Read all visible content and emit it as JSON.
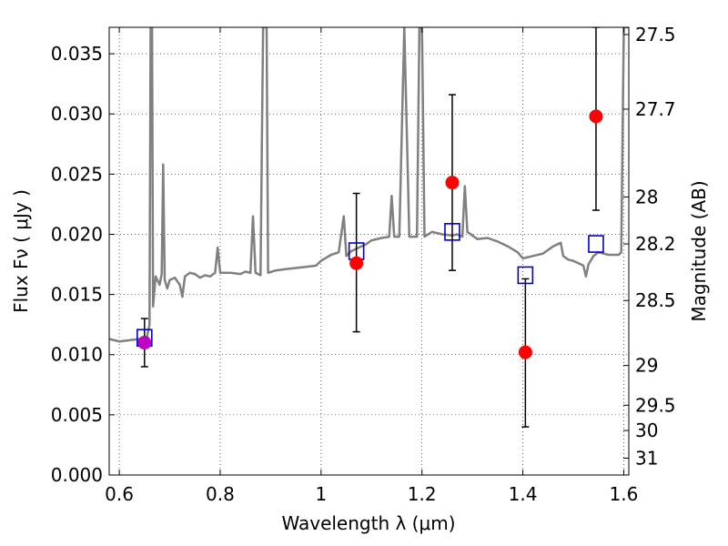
{
  "chart_data": {
    "type": "scatter",
    "xlabel": "Wavelength  λ (μm)",
    "ylabel": "Flux  Fν  ( μJy )",
    "y2label": "Magnitude (AB)",
    "xlim": [
      0.58,
      1.61
    ],
    "ylim": [
      0.0,
      0.0372
    ],
    "grid": true,
    "x_ticks": [
      0.6,
      0.8,
      1.0,
      1.2,
      1.4,
      1.6
    ],
    "x_tick_labels": [
      "0.6",
      "0.8",
      "1",
      "1.2",
      "1.4",
      "1.6"
    ],
    "y_ticks": [
      0.0,
      0.005,
      0.01,
      0.015,
      0.02,
      0.025,
      0.03,
      0.035
    ],
    "y_tick_labels": [
      "0.000",
      "0.005",
      "0.010",
      "0.015",
      "0.020",
      "0.025",
      "0.030",
      "0.035"
    ],
    "y2_ticks": [
      {
        "label": "27.5",
        "flux": 0.0366
      },
      {
        "label": "27.7",
        "flux": 0.0304
      },
      {
        "label": "28",
        "flux": 0.0231
      },
      {
        "label": "28.2",
        "flux": 0.0192
      },
      {
        "label": "28.5",
        "flux": 0.0145
      },
      {
        "label": "29",
        "flux": 0.0091
      },
      {
        "label": "29.5",
        "flux": 0.0058
      },
      {
        "label": "30",
        "flux": 0.0037
      },
      {
        "label": "31",
        "flux": 0.0014
      }
    ],
    "model_spectrum": {
      "color": "#808080",
      "points": [
        [
          0.58,
          0.0113
        ],
        [
          0.6,
          0.0111
        ],
        [
          0.62,
          0.0112
        ],
        [
          0.64,
          0.0113
        ],
        [
          0.655,
          0.0115
        ],
        [
          0.66,
          0.0125
        ],
        [
          0.662,
          0.0372
        ],
        [
          0.665,
          0.0372
        ],
        [
          0.667,
          0.014
        ],
        [
          0.672,
          0.0165
        ],
        [
          0.68,
          0.0158
        ],
        [
          0.684,
          0.0167
        ],
        [
          0.687,
          0.0258
        ],
        [
          0.69,
          0.0162
        ],
        [
          0.695,
          0.0155
        ],
        [
          0.7,
          0.0162
        ],
        [
          0.71,
          0.0164
        ],
        [
          0.72,
          0.0158
        ],
        [
          0.725,
          0.0148
        ],
        [
          0.73,
          0.0165
        ],
        [
          0.74,
          0.0168
        ],
        [
          0.75,
          0.0167
        ],
        [
          0.76,
          0.0164
        ],
        [
          0.77,
          0.0166
        ],
        [
          0.78,
          0.0165
        ],
        [
          0.79,
          0.0168
        ],
        [
          0.795,
          0.0189
        ],
        [
          0.8,
          0.0168
        ],
        [
          0.82,
          0.0168
        ],
        [
          0.84,
          0.0167
        ],
        [
          0.85,
          0.0169
        ],
        [
          0.86,
          0.0168
        ],
        [
          0.865,
          0.0215
        ],
        [
          0.87,
          0.0168
        ],
        [
          0.88,
          0.0166
        ],
        [
          0.885,
          0.0372
        ],
        [
          0.892,
          0.0372
        ],
        [
          0.895,
          0.0168
        ],
        [
          0.91,
          0.017
        ],
        [
          0.93,
          0.0171
        ],
        [
          0.95,
          0.0172
        ],
        [
          0.97,
          0.0173
        ],
        [
          0.99,
          0.0174
        ],
        [
          1.0,
          0.0178
        ],
        [
          1.02,
          0.0183
        ],
        [
          1.035,
          0.0185
        ],
        [
          1.045,
          0.0215
        ],
        [
          1.05,
          0.0182
        ],
        [
          1.06,
          0.0186
        ],
        [
          1.07,
          0.0188
        ],
        [
          1.08,
          0.019
        ],
        [
          1.09,
          0.0192
        ],
        [
          1.1,
          0.0195
        ],
        [
          1.12,
          0.0197
        ],
        [
          1.135,
          0.0198
        ],
        [
          1.14,
          0.0232
        ],
        [
          1.145,
          0.0198
        ],
        [
          1.155,
          0.0198
        ],
        [
          1.165,
          0.0372
        ],
        [
          1.175,
          0.0198
        ],
        [
          1.19,
          0.0198
        ],
        [
          1.195,
          0.0372
        ],
        [
          1.2,
          0.0372
        ],
        [
          1.205,
          0.0198
        ],
        [
          1.22,
          0.0202
        ],
        [
          1.24,
          0.02
        ],
        [
          1.26,
          0.0199
        ],
        [
          1.27,
          0.02
        ],
        [
          1.28,
          0.0198
        ],
        [
          1.285,
          0.024
        ],
        [
          1.29,
          0.0202
        ],
        [
          1.31,
          0.0196
        ],
        [
          1.33,
          0.0197
        ],
        [
          1.35,
          0.0194
        ],
        [
          1.37,
          0.019
        ],
        [
          1.39,
          0.0185
        ],
        [
          1.4,
          0.018
        ],
        [
          1.42,
          0.0182
        ],
        [
          1.44,
          0.0184
        ],
        [
          1.46,
          0.019
        ],
        [
          1.475,
          0.0193
        ],
        [
          1.48,
          0.0182
        ],
        [
          1.49,
          0.0179
        ],
        [
          1.5,
          0.0178
        ],
        [
          1.51,
          0.0176
        ],
        [
          1.52,
          0.0174
        ],
        [
          1.525,
          0.0165
        ],
        [
          1.53,
          0.0175
        ],
        [
          1.54,
          0.0182
        ],
        [
          1.55,
          0.0185
        ],
        [
          1.57,
          0.0183
        ],
        [
          1.59,
          0.0183
        ],
        [
          1.595,
          0.0185
        ],
        [
          1.6,
          0.0372
        ],
        [
          1.61,
          0.0372
        ]
      ]
    },
    "model_magnitudes": {
      "marker": "open-square",
      "color": "#0000cc",
      "points": [
        {
          "x": 0.65,
          "y": 0.0114
        },
        {
          "x": 1.07,
          "y": 0.0186
        },
        {
          "x": 1.26,
          "y": 0.0202
        },
        {
          "x": 1.405,
          "y": 0.0166
        },
        {
          "x": 1.545,
          "y": 0.0192
        }
      ]
    },
    "observed": {
      "marker": "filled-circle",
      "color": "#ff0000",
      "points": [
        {
          "x": 0.65,
          "y": 0.011,
          "yerr_low": 0.009,
          "yerr_high": 0.013,
          "color": "#c000c0"
        },
        {
          "x": 1.07,
          "y": 0.0176,
          "yerr_low": 0.0119,
          "yerr_high": 0.0234
        },
        {
          "x": 1.26,
          "y": 0.0243,
          "yerr_low": 0.017,
          "yerr_high": 0.0316
        },
        {
          "x": 1.405,
          "y": 0.0102,
          "yerr_low": 0.004,
          "yerr_high": 0.0163
        },
        {
          "x": 1.545,
          "y": 0.0298,
          "yerr_low": 0.022,
          "yerr_high": 0.0372
        }
      ]
    }
  }
}
